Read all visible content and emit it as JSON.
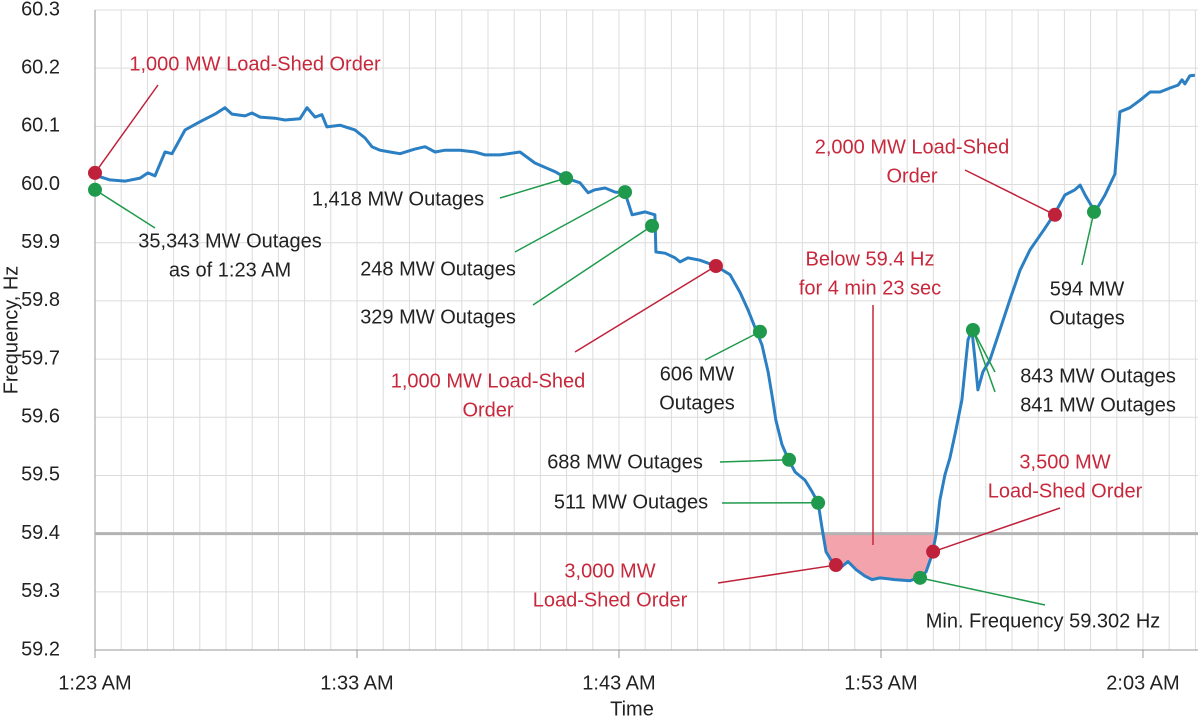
{
  "chart_data": {
    "type": "line",
    "x_label": "Time",
    "y_label": "Frequency, Hz",
    "xlim": [
      83,
      125.1
    ],
    "ylim": [
      59.2,
      60.3
    ],
    "xticks": [
      {
        "value": 83,
        "label": "1:23 AM"
      },
      {
        "value": 93,
        "label": "1:33 AM"
      },
      {
        "value": 103,
        "label": "1:43 AM"
      },
      {
        "value": 113,
        "label": "1:53 AM"
      },
      {
        "value": 123,
        "label": "2:03 AM"
      }
    ],
    "yticks": [
      59.2,
      59.3,
      {
        "value": 59.4,
        "label": "59.4"
      },
      59.5,
      59.6,
      59.7,
      59.8,
      59.9,
      {
        "value": 60,
        "label": "60.0"
      },
      60.1,
      60.2,
      60.3
    ],
    "grid": true,
    "x_minor_grid_step": 1,
    "color": "#2b7fc3",
    "x": [
      83.0,
      83.57,
      84.15,
      84.72,
      85.02,
      85.29,
      85.67,
      85.94,
      86.44,
      87.01,
      87.58,
      87.96,
      88.23,
      88.73,
      88.99,
      89.3,
      89.87,
      90.25,
      90.82,
      91.09,
      91.4,
      91.66,
      91.85,
      92.35,
      92.92,
      93.31,
      93.57,
      93.88,
      94.26,
      94.64,
      95.21,
      95.6,
      95.98,
      96.36,
      96.93,
      97.5,
      97.89,
      98.46,
      99.22,
      99.79,
      100.56,
      100.98,
      101.51,
      101.82,
      102.08,
      102.47,
      102.85,
      103.23,
      103.5,
      104.0,
      104.37,
      104.41,
      104.76,
      105.14,
      105.33,
      105.63,
      106.09,
      106.7,
      107.24,
      107.62,
      107.92,
      108.23,
      108.46,
      108.69,
      108.84,
      108.99,
      109.22,
      109.45,
      109.72,
      110.1,
      110.37,
      110.6,
      110.76,
      110.9,
      111.13,
      111.44,
      111.74,
      112.05,
      112.39,
      112.66,
      112.96,
      113.53,
      114.11,
      114.49,
      114.72,
      114.95,
      115.1,
      115.25,
      115.44,
      115.63,
      115.86,
      116.09,
      116.32,
      116.47,
      116.59,
      116.7,
      116.89,
      117.16,
      117.54,
      117.92,
      118.31,
      118.69,
      119.26,
      119.64,
      120.02,
      120.4,
      120.6,
      120.79,
      121.17,
      121.55,
      121.93,
      122.12,
      122.5,
      122.89,
      123.27,
      123.65,
      124.03,
      124.34,
      124.49,
      124.6,
      124.79,
      124.98
    ],
    "values": [
      60.016,
      60.008,
      60.006,
      60.011,
      60.02,
      60.015,
      60.056,
      60.053,
      60.094,
      60.108,
      60.121,
      60.132,
      60.121,
      60.118,
      60.123,
      60.116,
      60.114,
      60.111,
      60.113,
      60.132,
      60.116,
      60.12,
      60.099,
      60.102,
      60.094,
      60.08,
      60.065,
      60.059,
      60.056,
      60.053,
      60.061,
      60.065,
      60.056,
      60.059,
      60.059,
      60.056,
      60.051,
      60.051,
      60.056,
      60.037,
      60.022,
      60.011,
      60.003,
      59.986,
      59.991,
      59.994,
      59.987,
      59.986,
      59.948,
      59.953,
      59.948,
      59.884,
      59.882,
      59.874,
      59.867,
      59.874,
      59.87,
      59.86,
      59.845,
      59.815,
      59.785,
      59.75,
      59.724,
      59.678,
      59.638,
      59.595,
      59.553,
      59.529,
      59.506,
      59.492,
      59.472,
      59.453,
      59.407,
      59.369,
      59.352,
      59.341,
      59.352,
      59.338,
      59.327,
      59.321,
      59.324,
      59.321,
      59.319,
      59.326,
      59.334,
      59.364,
      59.398,
      59.458,
      59.501,
      59.53,
      59.578,
      59.63,
      59.733,
      59.75,
      59.699,
      59.647,
      59.678,
      59.699,
      59.75,
      59.802,
      59.853,
      59.888,
      59.925,
      59.951,
      59.982,
      59.991,
      59.999,
      59.982,
      59.953,
      59.982,
      60.018,
      60.125,
      60.132,
      60.145,
      60.159,
      60.159,
      60.166,
      60.171,
      60.18,
      60.173,
      60.187,
      60.188
    ],
    "threshold": {
      "value": 59.4,
      "color": "#b3b3b3",
      "fill": "#f2a3ab",
      "label": [
        "Below 59.4 Hz",
        "for 4 min 23 sec"
      ],
      "label_color": "#c8283c"
    },
    "annotations": [
      {
        "text": [
          "1,000 MW Load-Shed Order"
        ],
        "x": 83.0,
        "y": 60.02,
        "marker_color": "#c0213a",
        "text_color": "#c8283c"
      },
      {
        "text": [
          "35,343 MW Outages",
          "as of 1:23 AM"
        ],
        "x": 83.0,
        "y": 59.991,
        "marker_color": "#1f9a4c",
        "text_color": "#222222"
      },
      {
        "text": [
          "1,418 MW Outages"
        ],
        "x": 100.98,
        "y": 60.011,
        "marker_color": "#1f9a4c",
        "text_color": "#222222"
      },
      {
        "text": [
          "248 MW Outages"
        ],
        "x": 103.23,
        "y": 59.987,
        "marker_color": "#1f9a4c",
        "text_color": "#222222"
      },
      {
        "text": [
          "329 MW Outages"
        ],
        "x": 104.26,
        "y": 59.929,
        "marker_color": "#1f9a4c",
        "text_color": "#222222"
      },
      {
        "text": [
          "1,000 MW Load-Shed",
          "Order"
        ],
        "x": 106.7,
        "y": 59.86,
        "marker_color": "#c0213a",
        "text_color": "#c8283c"
      },
      {
        "text": [
          "606 MW",
          "Outages"
        ],
        "x": 108.38,
        "y": 59.747,
        "marker_color": "#1f9a4c",
        "text_color": "#222222"
      },
      {
        "text": [
          "688 MW Outages"
        ],
        "x": 109.49,
        "y": 59.527,
        "marker_color": "#1f9a4c",
        "text_color": "#222222"
      },
      {
        "text": [
          "511 MW Outages"
        ],
        "x": 110.6,
        "y": 59.453,
        "marker_color": "#1f9a4c",
        "text_color": "#222222"
      },
      {
        "text": [
          "3,000 MW",
          "Load-Shed Order"
        ],
        "x": 111.28,
        "y": 59.346,
        "marker_color": "#c0213a",
        "text_color": "#c8283c"
      },
      {
        "text": [
          "Min. Frequency 59.302 Hz"
        ],
        "x": 114.49,
        "y": 59.324,
        "marker_color": "#1f9a4c",
        "text_color": "#222222"
      },
      {
        "text": [
          "3,500 MW",
          "Load-Shed Order"
        ],
        "x": 114.99,
        "y": 59.369,
        "marker_color": "#c0213a",
        "text_color": "#c8283c"
      },
      {
        "text": [
          "843 MW Outages",
          "841 MW Outages"
        ],
        "x": 116.51,
        "y": 59.75,
        "marker_color": "#1f9a4c",
        "text_color": "#222222"
      },
      {
        "text": [
          "2,000 MW Load-Shed",
          "Order"
        ],
        "x": 119.64,
        "y": 59.948,
        "marker_color": "#c0213a",
        "text_color": "#c8283c"
      },
      {
        "text": [
          "594 MW",
          "Outages"
        ],
        "x": 121.13,
        "y": 59.953,
        "marker_color": "#1f9a4c",
        "text_color": "#222222"
      }
    ]
  }
}
